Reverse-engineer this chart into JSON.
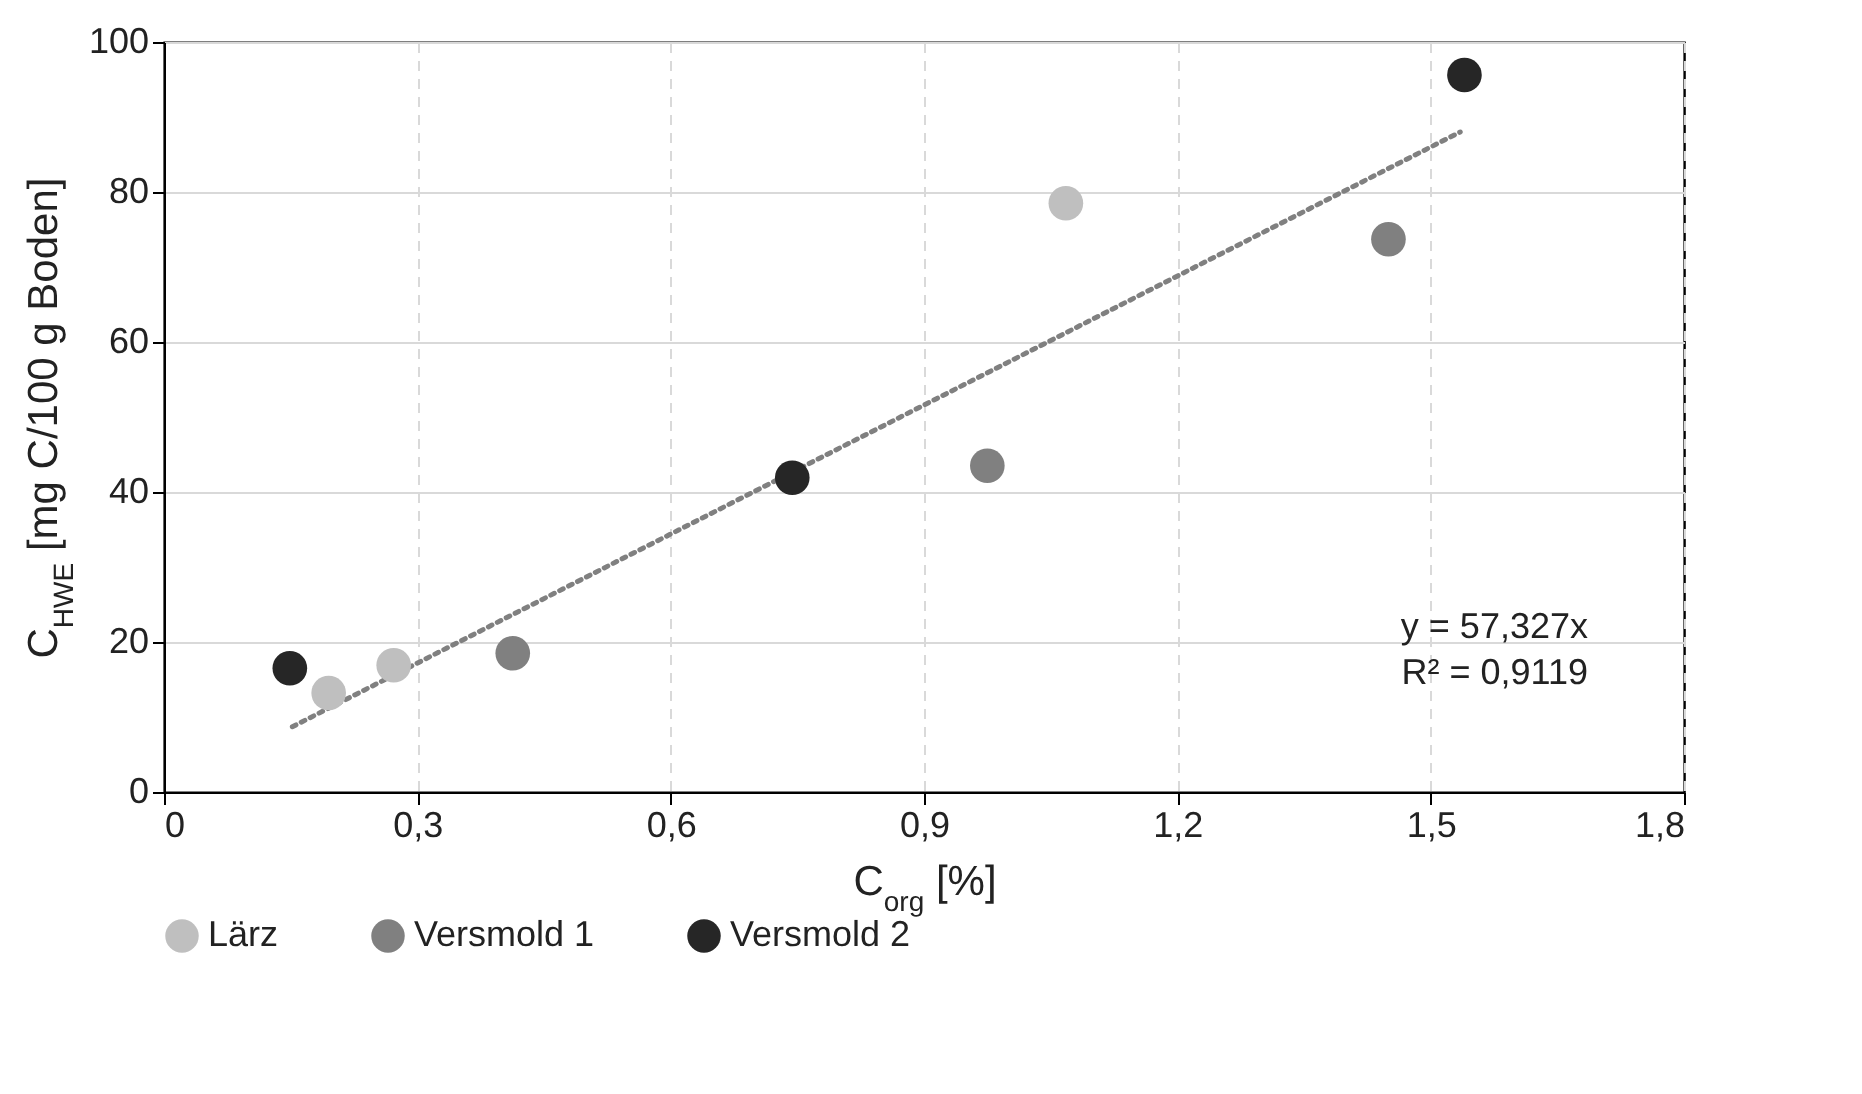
{
  "chart_data": {
    "type": "scatter",
    "xlabel": "C$_{org}$ [%]",
    "ylabel": "C$_{HWE}$ [mg C/100 g Boden]",
    "series": [
      {
        "name": "Lärz",
        "color": "#bfbfbf",
        "x": [
          0.195,
          0.272,
          1.068
        ],
        "values": [
          13.2,
          16.9,
          78.5
        ]
      },
      {
        "name": "Versmold 1",
        "color": "#808080",
        "x": [
          0.413,
          0.975,
          1.45
        ],
        "values": [
          18.5,
          43.5,
          73.7
        ]
      },
      {
        "name": "Versmold 2",
        "color": "#262626",
        "x": [
          0.149,
          0.744,
          1.54
        ],
        "values": [
          16.5,
          41.9,
          95.6
        ]
      },
      {
        "type": "line",
        "color": "#808080",
        "line_style": "dotted",
        "marker": "none",
        "x": [
          0.152,
          1.535
        ],
        "values": [
          8.7,
          88.0
        ]
      }
    ],
    "xlim": [
      0,
      1.8
    ],
    "xticks": [
      0,
      {
        "value": 0.3,
        "label": "0,3"
      },
      {
        "value": 0.6,
        "label": "0,6"
      },
      {
        "value": 0.9,
        "label": "0,9"
      },
      {
        "value": 1.2,
        "label": "1,2"
      },
      {
        "value": 1.5,
        "label": "1,5"
      },
      {
        "value": 1.8,
        "label": "1,8"
      }
    ],
    "ylim": [
      0,
      100
    ],
    "yticks": [
      0,
      20,
      40,
      60,
      80,
      100
    ],
    "grid": true,
    "legend": "bottom",
    "marker": "circle",
    "annotations": [
      "y = 57,327x",
      "R² = 0,9119"
    ]
  }
}
